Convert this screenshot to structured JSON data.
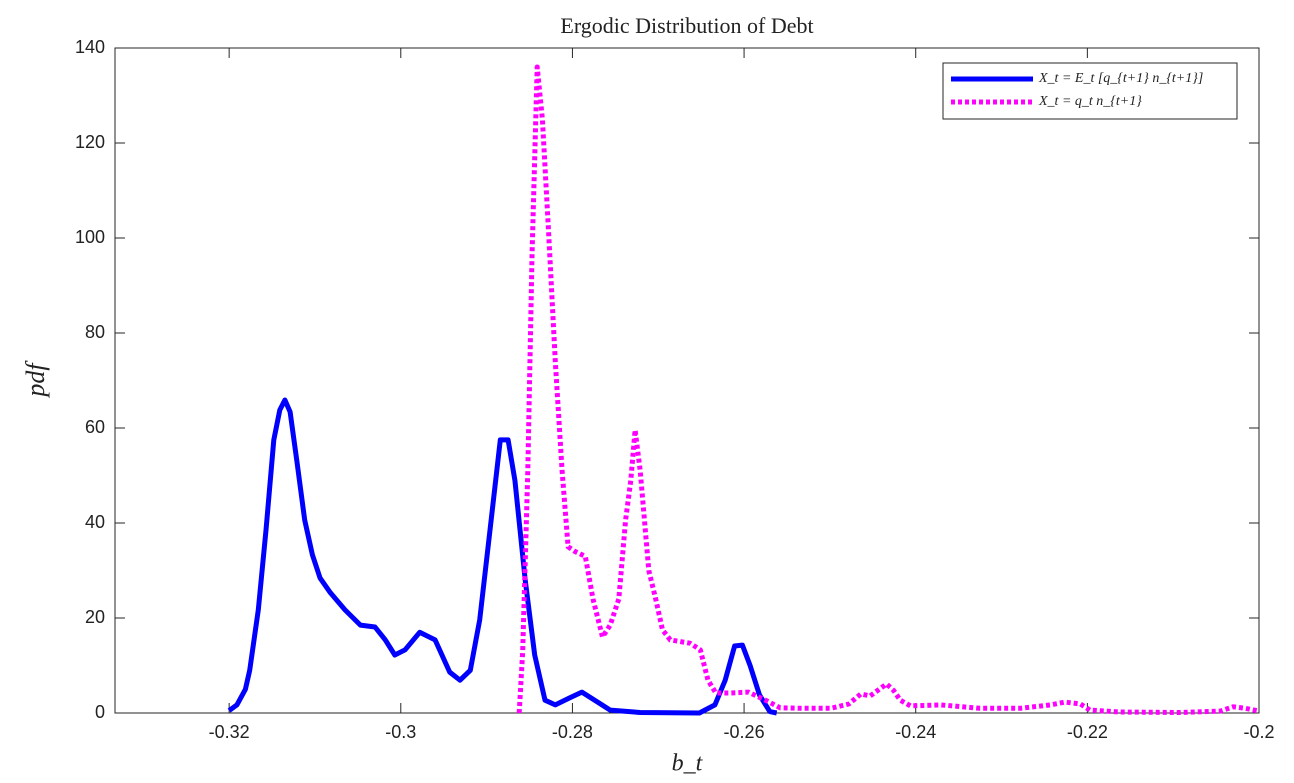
{
  "chart_data": {
    "type": "line",
    "title": "Ergodic Distribution of Debt",
    "x_label": "b_t",
    "y_label": "pdf",
    "xlim": [
      -0.3333,
      -0.2
    ],
    "ylim": [
      0,
      140
    ],
    "xticks": [
      -0.32,
      -0.3,
      -0.28,
      -0.26,
      -0.24,
      -0.22,
      -0.2
    ],
    "yticks": [
      0,
      20,
      40,
      60,
      80,
      100,
      120,
      140
    ],
    "legend_position": "upper right",
    "series": [
      {
        "name": "X_t = E_t [q_{t+1} n_{t+1}]",
        "color": "#0000ff",
        "style": "solid",
        "x": [
          -0.32,
          -0.3191,
          -0.3181,
          -0.3176,
          -0.3166,
          -0.3157,
          -0.3148,
          -0.3141,
          -0.3135,
          -0.3129,
          -0.3121,
          -0.3112,
          -0.3103,
          -0.3094,
          -0.3082,
          -0.3065,
          -0.3047,
          -0.303,
          -0.3018,
          -0.3007,
          -0.2995,
          -0.2978,
          -0.296,
          -0.2943,
          -0.2931,
          -0.2919,
          -0.2908,
          -0.2896,
          -0.2884,
          -0.2875,
          -0.2867,
          -0.2855,
          -0.2844,
          -0.2832,
          -0.282,
          -0.2803,
          -0.2789,
          -0.2774,
          -0.2756,
          -0.2721,
          -0.2652,
          -0.2634,
          -0.2622,
          -0.2611,
          -0.2602,
          -0.2593,
          -0.2582,
          -0.257,
          -0.2562
        ],
        "values": [
          0.5,
          1.7,
          5,
          9,
          21.7,
          38.5,
          57.5,
          63.8,
          65.9,
          63.4,
          53,
          40.6,
          33.3,
          28.4,
          25.3,
          21.7,
          18.5,
          18.1,
          15.4,
          12.2,
          13.3,
          17,
          15.4,
          8.6,
          6.9,
          9,
          19.6,
          38.5,
          57.5,
          57.5,
          49,
          28,
          12.2,
          2.7,
          1.7,
          3.2,
          4.4,
          2.7,
          0.6,
          0.1,
          0,
          1.7,
          6.9,
          14.1,
          14.3,
          10,
          3.8,
          0.3,
          0
        ]
      },
      {
        "name": "X_t = q_t n_{t+1}",
        "color": "#ff00ff",
        "style": "dotted",
        "x": [
          -0.2862,
          -0.2858,
          -0.2852,
          -0.2847,
          -0.2841,
          -0.2835,
          -0.2828,
          -0.282,
          -0.2812,
          -0.2805,
          -0.2797,
          -0.2785,
          -0.2776,
          -0.2765,
          -0.2756,
          -0.2746,
          -0.2738,
          -0.2732,
          -0.2727,
          -0.2721,
          -0.2711,
          -0.2703,
          -0.2695,
          -0.2686,
          -0.2663,
          -0.2651,
          -0.2642,
          -0.2633,
          -0.2616,
          -0.2595,
          -0.2575,
          -0.2558,
          -0.2534,
          -0.2499,
          -0.2478,
          -0.2464,
          -0.2453,
          -0.2444,
          -0.2434,
          -0.2426,
          -0.2418,
          -0.2406,
          -0.2371,
          -0.2325,
          -0.2278,
          -0.2243,
          -0.2226,
          -0.2208,
          -0.2197,
          -0.2162,
          -0.2092,
          -0.2045,
          -0.203,
          -0.2016,
          -0.2
        ],
        "values": [
          0,
          13,
          51,
          97,
          136,
          125,
          102,
          74,
          51,
          35,
          34,
          33,
          24,
          16,
          18.5,
          24,
          40.6,
          49,
          59.6,
          51,
          30,
          24,
          17.5,
          15.4,
          14.7,
          13.3,
          6.9,
          4.2,
          4.2,
          4.4,
          2.7,
          1.1,
          1,
          1,
          1.9,
          4,
          3.6,
          4.8,
          6.1,
          4.8,
          2.7,
          1.5,
          1.7,
          1,
          1,
          1.7,
          2.3,
          1.9,
          0.6,
          0.2,
          0.1,
          0.4,
          1.3,
          1,
          0.4
        ]
      }
    ]
  }
}
